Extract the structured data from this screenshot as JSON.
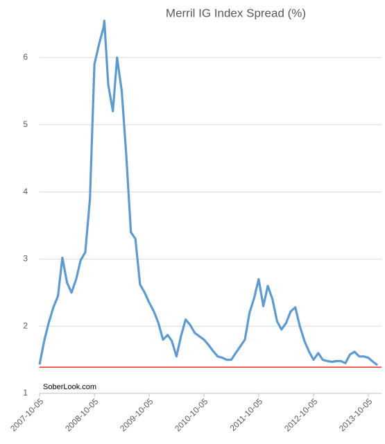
{
  "chart_data": {
    "type": "line",
    "title": "Merril IG Index Spread (%)",
    "x": [
      "2007-10-05",
      "2007-11-05",
      "2007-12-05",
      "2008-01-05",
      "2008-02-05",
      "2008-03-05",
      "2008-04-05",
      "2008-05-05",
      "2008-06-05",
      "2008-07-05",
      "2008-08-05",
      "2008-09-05",
      "2008-10-05",
      "2008-11-05",
      "2008-12-05",
      "2008-12-10",
      "2009-01-05",
      "2009-02-05",
      "2009-03-05",
      "2009-04-05",
      "2009-05-05",
      "2009-06-05",
      "2009-07-05",
      "2009-08-05",
      "2009-09-05",
      "2009-10-05",
      "2009-11-05",
      "2009-12-05",
      "2010-01-05",
      "2010-02-05",
      "2010-03-05",
      "2010-04-05",
      "2010-05-05",
      "2010-06-05",
      "2010-07-05",
      "2010-08-05",
      "2010-09-05",
      "2010-10-05",
      "2010-11-05",
      "2010-12-05",
      "2011-01-05",
      "2011-02-05",
      "2011-03-05",
      "2011-04-05",
      "2011-05-05",
      "2011-06-05",
      "2011-07-05",
      "2011-08-05",
      "2011-09-05",
      "2011-10-05",
      "2011-11-05",
      "2011-12-05",
      "2012-01-05",
      "2012-02-05",
      "2012-03-05",
      "2012-04-05",
      "2012-05-05",
      "2012-06-05",
      "2012-07-05",
      "2012-08-05",
      "2012-09-05",
      "2012-10-05",
      "2012-11-05",
      "2012-12-05",
      "2013-01-05",
      "2013-02-05",
      "2013-03-05",
      "2013-04-05",
      "2013-05-05",
      "2013-06-05",
      "2013-07-05",
      "2013-08-05",
      "2013-09-05",
      "2013-10-05",
      "2013-11-05",
      "2013-12-05"
    ],
    "series": [
      {
        "name": "Merril IG Index Spread",
        "color": "#5b9bd5",
        "values": [
          1.43,
          1.78,
          2.05,
          2.28,
          2.45,
          3.02,
          2.65,
          2.5,
          2.7,
          2.98,
          3.1,
          3.9,
          5.9,
          6.2,
          6.45,
          6.55,
          5.6,
          5.2,
          6.0,
          5.5,
          4.55,
          3.4,
          3.3,
          2.62,
          2.5,
          2.35,
          2.22,
          2.05,
          1.8,
          1.87,
          1.78,
          1.55,
          1.85,
          2.1,
          2.02,
          1.9,
          1.85,
          1.8,
          1.72,
          1.63,
          1.55,
          1.53,
          1.5,
          1.5,
          1.6,
          1.7,
          1.8,
          2.2,
          2.42,
          2.7,
          2.3,
          2.6,
          2.4,
          2.07,
          1.95,
          2.05,
          2.22,
          2.28,
          2.0,
          1.78,
          1.62,
          1.5,
          1.6,
          1.5,
          1.48,
          1.47,
          1.48,
          1.48,
          1.45,
          1.58,
          1.62,
          1.55,
          1.55,
          1.53,
          1.47,
          1.42
        ]
      }
    ],
    "xlim": [
      "2007-10-05",
      "2014-01-01"
    ],
    "xticks": [
      "2007-10-05",
      "2008-10-05",
      "2009-10-05",
      "2010-10-05",
      "2011-10-05",
      "2012-10-05",
      "2013-10-05"
    ],
    "ylim": [
      1,
      6.8
    ],
    "yticks": [
      1,
      2,
      3,
      4,
      5,
      6
    ],
    "grid": true,
    "hline": {
      "value": 1.39,
      "color": "#ff0000"
    },
    "annotation": "SoberLook.com"
  }
}
